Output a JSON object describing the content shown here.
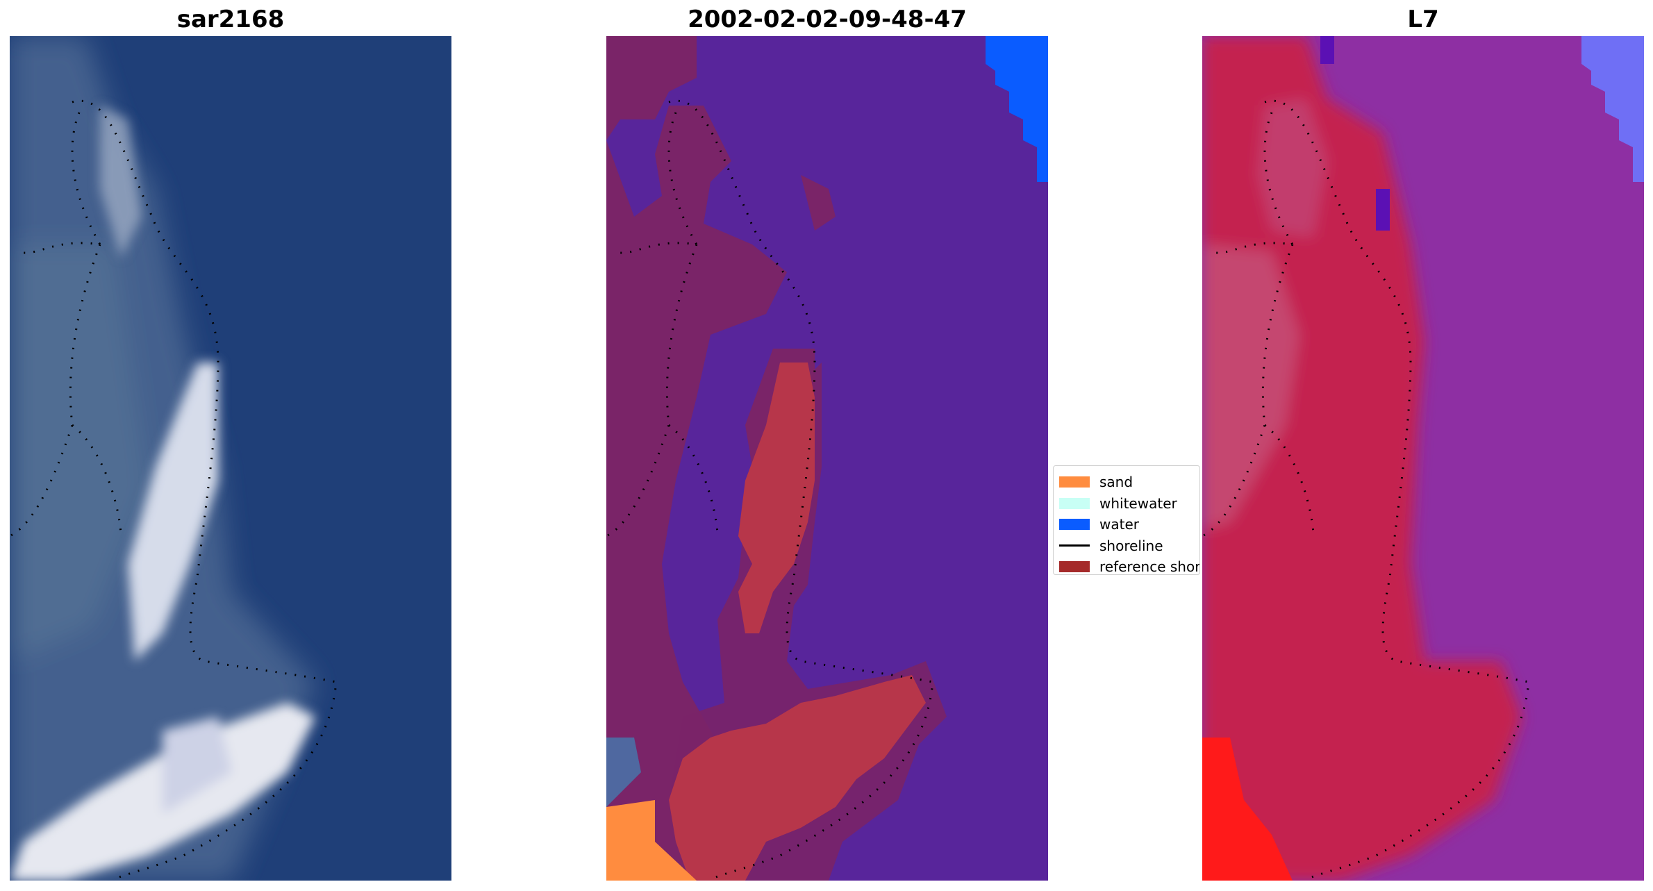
{
  "panels": [
    {
      "title": "sar2168"
    },
    {
      "title": "2002-02-02-09-48-47"
    },
    {
      "title": "L7"
    }
  ],
  "legend": {
    "items": [
      {
        "label": "sand",
        "color": "#ff8c3f",
        "kind": "patch"
      },
      {
        "label": "whitewater",
        "color": "#c8fff5",
        "kind": "patch"
      },
      {
        "label": "water",
        "color": "#0a5cff",
        "kind": "patch"
      },
      {
        "label": "shoreline",
        "color": "#000000",
        "kind": "line"
      },
      {
        "label": "reference shoreline",
        "color": "#a52a2a",
        "kind": "patch"
      }
    ]
  },
  "colors": {
    "rgb_water": "#1f3f78",
    "classified_background": "#58259b",
    "classified_land": "#7a2468",
    "classified_sand_overlay": "#b7364a",
    "ndwi_background": "#8e2fa3",
    "ndwi_land": "#c4204f",
    "ndwi_high": "#ff1a1a"
  }
}
